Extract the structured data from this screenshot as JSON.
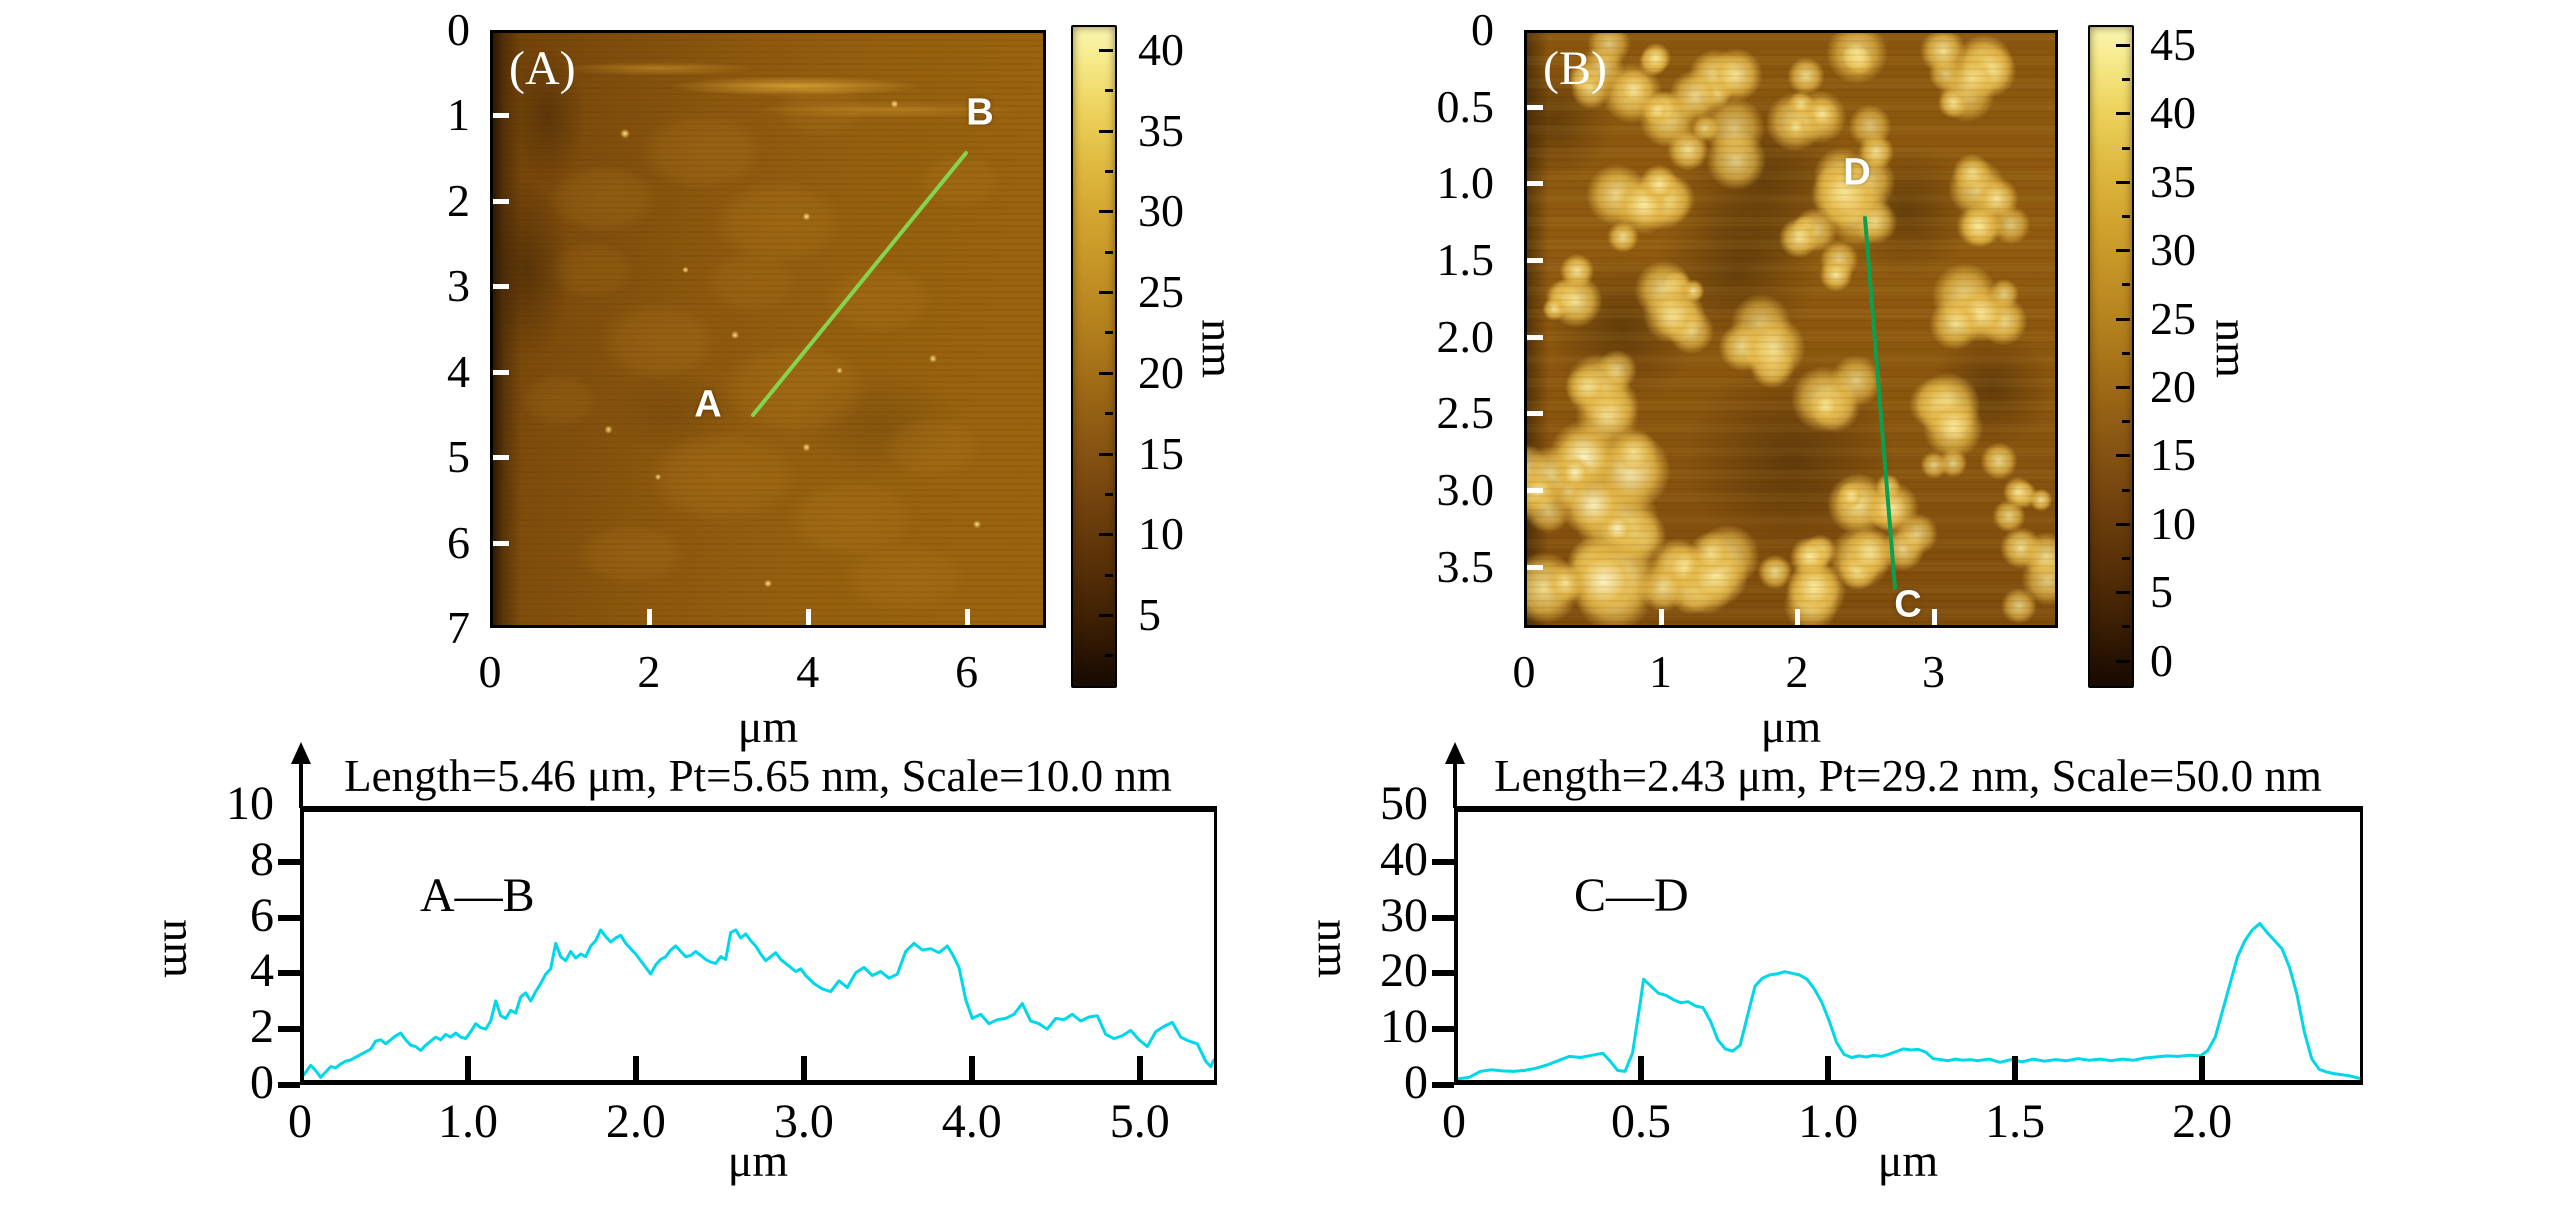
{
  "figure": {
    "background": "#ffffff"
  },
  "colors": {
    "profile_curve": "#00d7e8",
    "panel_a_line": "#85d44f",
    "panel_b_line": "#0ba050",
    "afm_tick": "#ffffff",
    "text": "#000000"
  },
  "panel_a": {
    "label": "(A)",
    "axis_unit": "μm",
    "x_tick_labels": [
      "0",
      "2",
      "4",
      "6"
    ],
    "x_tick_values": [
      0,
      2,
      4,
      6
    ],
    "y_tick_labels": [
      "0",
      "1",
      "2",
      "3",
      "4",
      "5",
      "6",
      "7"
    ],
    "y_tick_values": [
      0,
      1,
      2,
      3,
      4,
      5,
      6,
      7
    ],
    "x_range_um": [
      0,
      7
    ],
    "y_range_um": [
      0,
      7
    ],
    "profile_line": {
      "start_label": "A",
      "end_label": "B",
      "color": "#85d44f"
    },
    "colorbar": {
      "unit": "nm",
      "tick_labels": [
        "40",
        "35",
        "30",
        "25",
        "20",
        "15",
        "10",
        "5"
      ],
      "tick_values": [
        40,
        35,
        30,
        25,
        20,
        15,
        10,
        5
      ]
    }
  },
  "panel_b": {
    "label": "(B)",
    "axis_unit": "μm",
    "x_tick_labels": [
      "0",
      "1",
      "2",
      "3"
    ],
    "x_tick_values": [
      0,
      1,
      2,
      3
    ],
    "y_tick_labels": [
      "0",
      "0.5",
      "1.0",
      "1.5",
      "2.0",
      "2.5",
      "3.0",
      "3.5"
    ],
    "y_tick_values": [
      0,
      0.5,
      1.0,
      1.5,
      2.0,
      2.5,
      3.0,
      3.5
    ],
    "x_range_um": [
      0,
      3.9
    ],
    "y_range_um": [
      0,
      3.9
    ],
    "profile_line": {
      "start_label": "C",
      "end_label": "D",
      "color": "#0ba050"
    },
    "colorbar": {
      "unit": "nm",
      "tick_labels": [
        "45",
        "40",
        "35",
        "30",
        "25",
        "20",
        "15",
        "10",
        "5",
        "0"
      ],
      "tick_values": [
        45,
        40,
        35,
        30,
        25,
        20,
        15,
        10,
        5,
        0
      ]
    }
  },
  "chart_data": [
    {
      "type": "line",
      "title": "Length=5.46 μm, Pt=5.65 nm, Scale=10.0 nm",
      "annotation": "A—B",
      "xlabel": "μm",
      "ylabel": "nm",
      "xlim": [
        0,
        5.46
      ],
      "ylim": [
        0,
        10
      ],
      "x_tick_labels": [
        "0",
        "1.0",
        "2.0",
        "3.0",
        "4.0",
        "5.0"
      ],
      "x_tick_values": [
        0,
        1,
        2,
        3,
        4,
        5
      ],
      "y_tick_labels": [
        "0",
        "2",
        "4",
        "6",
        "8",
        "10"
      ],
      "y_tick_values": [
        0,
        2,
        4,
        6,
        8,
        10
      ],
      "line_color": "#00d7e8",
      "points": [
        [
          0,
          0.2
        ],
        [
          0.04,
          0.55
        ],
        [
          0.07,
          0.35
        ],
        [
          0.1,
          0.1
        ],
        [
          0.13,
          0.3
        ],
        [
          0.16,
          0.5
        ],
        [
          0.19,
          0.45
        ],
        [
          0.22,
          0.6
        ],
        [
          0.25,
          0.7
        ],
        [
          0.28,
          0.75
        ],
        [
          0.31,
          0.85
        ],
        [
          0.34,
          0.95
        ],
        [
          0.37,
          1.05
        ],
        [
          0.4,
          1.15
        ],
        [
          0.43,
          1.45
        ],
        [
          0.46,
          1.5
        ],
        [
          0.49,
          1.35
        ],
        [
          0.52,
          1.5
        ],
        [
          0.55,
          1.65
        ],
        [
          0.58,
          1.75
        ],
        [
          0.61,
          1.5
        ],
        [
          0.64,
          1.3
        ],
        [
          0.67,
          1.25
        ],
        [
          0.7,
          1.1
        ],
        [
          0.73,
          1.3
        ],
        [
          0.76,
          1.45
        ],
        [
          0.79,
          1.6
        ],
        [
          0.82,
          1.5
        ],
        [
          0.85,
          1.7
        ],
        [
          0.88,
          1.6
        ],
        [
          0.91,
          1.75
        ],
        [
          0.94,
          1.6
        ],
        [
          0.97,
          1.55
        ],
        [
          1,
          1.8
        ],
        [
          1.03,
          2.1
        ],
        [
          1.06,
          1.95
        ],
        [
          1.09,
          1.9
        ],
        [
          1.12,
          2.2
        ],
        [
          1.15,
          2.95
        ],
        [
          1.18,
          2.4
        ],
        [
          1.21,
          2.3
        ],
        [
          1.24,
          2.6
        ],
        [
          1.27,
          2.5
        ],
        [
          1.3,
          3.1
        ],
        [
          1.33,
          3.25
        ],
        [
          1.36,
          2.95
        ],
        [
          1.39,
          3.3
        ],
        [
          1.42,
          3.6
        ],
        [
          1.45,
          3.95
        ],
        [
          1.48,
          4.15
        ],
        [
          1.51,
          5.1
        ],
        [
          1.54,
          4.6
        ],
        [
          1.57,
          4.45
        ],
        [
          1.6,
          4.8
        ],
        [
          1.63,
          4.55
        ],
        [
          1.66,
          4.7
        ],
        [
          1.69,
          4.6
        ],
        [
          1.72,
          5
        ],
        [
          1.75,
          5.2
        ],
        [
          1.78,
          5.6
        ],
        [
          1.81,
          5.35
        ],
        [
          1.84,
          5.15
        ],
        [
          1.87,
          5.3
        ],
        [
          1.9,
          5.4
        ],
        [
          1.93,
          5.1
        ],
        [
          1.96,
          4.9
        ],
        [
          1.99,
          4.7
        ],
        [
          2.02,
          4.45
        ],
        [
          2.05,
          4.2
        ],
        [
          2.08,
          3.95
        ],
        [
          2.11,
          4.3
        ],
        [
          2.14,
          4.5
        ],
        [
          2.17,
          4.6
        ],
        [
          2.2,
          4.85
        ],
        [
          2.23,
          5
        ],
        [
          2.26,
          4.8
        ],
        [
          2.29,
          4.6
        ],
        [
          2.32,
          4.65
        ],
        [
          2.35,
          4.8
        ],
        [
          2.38,
          4.65
        ],
        [
          2.41,
          4.5
        ],
        [
          2.44,
          4.4
        ],
        [
          2.47,
          4.35
        ],
        [
          2.5,
          4.6
        ],
        [
          2.53,
          4.5
        ],
        [
          2.56,
          5.5
        ],
        [
          2.59,
          5.6
        ],
        [
          2.62,
          5.3
        ],
        [
          2.65,
          5.45
        ],
        [
          2.68,
          5.2
        ],
        [
          2.71,
          5
        ],
        [
          2.74,
          4.7
        ],
        [
          2.77,
          4.45
        ],
        [
          2.8,
          4.6
        ],
        [
          2.83,
          4.75
        ],
        [
          2.86,
          4.5
        ],
        [
          2.89,
          4.35
        ],
        [
          2.92,
          4.2
        ],
        [
          2.95,
          4.05
        ],
        [
          2.98,
          4.15
        ],
        [
          3.01,
          3.9
        ],
        [
          3.06,
          3.6
        ],
        [
          3.11,
          3.4
        ],
        [
          3.16,
          3.3
        ],
        [
          3.21,
          3.7
        ],
        [
          3.26,
          3.45
        ],
        [
          3.31,
          4
        ],
        [
          3.36,
          4.2
        ],
        [
          3.41,
          3.9
        ],
        [
          3.46,
          4.05
        ],
        [
          3.51,
          3.8
        ],
        [
          3.56,
          3.95
        ],
        [
          3.61,
          4.8
        ],
        [
          3.66,
          5.1
        ],
        [
          3.71,
          4.85
        ],
        [
          3.76,
          4.9
        ],
        [
          3.81,
          4.75
        ],
        [
          3.86,
          5
        ],
        [
          3.89,
          4.7
        ],
        [
          3.93,
          4.2
        ],
        [
          3.97,
          3
        ],
        [
          4.01,
          2.3
        ],
        [
          4.06,
          2.45
        ],
        [
          4.11,
          2.1
        ],
        [
          4.16,
          2.25
        ],
        [
          4.21,
          2.3
        ],
        [
          4.26,
          2.45
        ],
        [
          4.31,
          2.85
        ],
        [
          4.36,
          2.2
        ],
        [
          4.41,
          2.1
        ],
        [
          4.46,
          1.9
        ],
        [
          4.51,
          2.3
        ],
        [
          4.56,
          2.25
        ],
        [
          4.61,
          2.45
        ],
        [
          4.66,
          2.2
        ],
        [
          4.71,
          2.35
        ],
        [
          4.76,
          2.4
        ],
        [
          4.81,
          1.7
        ],
        [
          4.86,
          1.55
        ],
        [
          4.91,
          1.65
        ],
        [
          4.96,
          1.85
        ],
        [
          5.01,
          1.5
        ],
        [
          5.06,
          1.25
        ],
        [
          5.11,
          1.8
        ],
        [
          5.16,
          2
        ],
        [
          5.21,
          2.15
        ],
        [
          5.26,
          1.6
        ],
        [
          5.31,
          1.45
        ],
        [
          5.36,
          1.35
        ],
        [
          5.41,
          0.7
        ],
        [
          5.44,
          0.5
        ],
        [
          5.46,
          0.75
        ]
      ]
    },
    {
      "type": "line",
      "title": "Length=2.43 μm, Pt=29.2 nm, Scale=50.0 nm",
      "annotation": "C—D",
      "xlabel": "μm",
      "ylabel": "nm",
      "xlim": [
        0,
        2.43
      ],
      "ylim": [
        0,
        50
      ],
      "x_tick_labels": [
        "0",
        "0.5",
        "1.0",
        "1.5",
        "2.0"
      ],
      "x_tick_values": [
        0,
        0.5,
        1.0,
        1.5,
        2.0
      ],
      "y_tick_labels": [
        "0",
        "10",
        "20",
        "30",
        "40",
        "50"
      ],
      "y_tick_values": [
        0,
        10,
        20,
        30,
        40,
        50
      ],
      "line_color": "#00d7e8",
      "points": [
        [
          0,
          0.2
        ],
        [
          0.03,
          0.5
        ],
        [
          0.06,
          1.6
        ],
        [
          0.09,
          1.9
        ],
        [
          0.12,
          1.7
        ],
        [
          0.15,
          1.6
        ],
        [
          0.18,
          1.8
        ],
        [
          0.21,
          2.2
        ],
        [
          0.24,
          2.8
        ],
        [
          0.27,
          3.6
        ],
        [
          0.3,
          4.4
        ],
        [
          0.33,
          4.2
        ],
        [
          0.36,
          4.6
        ],
        [
          0.39,
          5
        ],
        [
          0.41,
          3.5
        ],
        [
          0.43,
          1.8
        ],
        [
          0.45,
          1.6
        ],
        [
          0.47,
          5
        ],
        [
          0.49,
          14
        ],
        [
          0.5,
          18.8
        ],
        [
          0.52,
          17.5
        ],
        [
          0.54,
          16.2
        ],
        [
          0.56,
          15.8
        ],
        [
          0.58,
          15
        ],
        [
          0.6,
          14.4
        ],
        [
          0.62,
          14.6
        ],
        [
          0.64,
          13.8
        ],
        [
          0.66,
          13.5
        ],
        [
          0.68,
          11
        ],
        [
          0.7,
          7.5
        ],
        [
          0.72,
          5.8
        ],
        [
          0.74,
          5.4
        ],
        [
          0.76,
          6.5
        ],
        [
          0.78,
          12
        ],
        [
          0.8,
          17.5
        ],
        [
          0.82,
          19
        ],
        [
          0.84,
          19.6
        ],
        [
          0.86,
          19.8
        ],
        [
          0.88,
          20.2
        ],
        [
          0.9,
          19.9
        ],
        [
          0.92,
          19.6
        ],
        [
          0.94,
          18.8
        ],
        [
          0.96,
          17
        ],
        [
          0.98,
          14.5
        ],
        [
          1,
          11
        ],
        [
          1.02,
          7
        ],
        [
          1.04,
          4.8
        ],
        [
          1.06,
          4.2
        ],
        [
          1.08,
          4.5
        ],
        [
          1.1,
          4.3
        ],
        [
          1.12,
          4.6
        ],
        [
          1.14,
          4.4
        ],
        [
          1.16,
          4.8
        ],
        [
          1.18,
          5.3
        ],
        [
          1.2,
          5.8
        ],
        [
          1.22,
          5.6
        ],
        [
          1.24,
          5.7
        ],
        [
          1.26,
          5.2
        ],
        [
          1.28,
          4
        ],
        [
          1.3,
          3.8
        ],
        [
          1.32,
          3.6
        ],
        [
          1.34,
          3.9
        ],
        [
          1.36,
          3.7
        ],
        [
          1.38,
          3.8
        ],
        [
          1.4,
          3.6
        ],
        [
          1.43,
          3.9
        ],
        [
          1.46,
          3.3
        ],
        [
          1.49,
          3.8
        ],
        [
          1.52,
          3.4
        ],
        [
          1.55,
          3.9
        ],
        [
          1.58,
          3.5
        ],
        [
          1.61,
          3.8
        ],
        [
          1.64,
          3.6
        ],
        [
          1.67,
          4
        ],
        [
          1.7,
          3.7
        ],
        [
          1.73,
          3.9
        ],
        [
          1.76,
          3.6
        ],
        [
          1.79,
          3.9
        ],
        [
          1.82,
          3.7
        ],
        [
          1.85,
          4.1
        ],
        [
          1.88,
          4.3
        ],
        [
          1.91,
          4.5
        ],
        [
          1.94,
          4.4
        ],
        [
          1.97,
          4.6
        ],
        [
          2,
          4.5
        ],
        [
          2.02,
          5.5
        ],
        [
          2.04,
          8
        ],
        [
          2.06,
          13
        ],
        [
          2.08,
          18
        ],
        [
          2.1,
          23
        ],
        [
          2.12,
          26
        ],
        [
          2.14,
          28
        ],
        [
          2.16,
          29.2
        ],
        [
          2.18,
          27.5
        ],
        [
          2.2,
          26
        ],
        [
          2.22,
          24.5
        ],
        [
          2.24,
          21
        ],
        [
          2.26,
          16
        ],
        [
          2.28,
          9
        ],
        [
          2.3,
          4
        ],
        [
          2.32,
          2
        ],
        [
          2.34,
          1.5
        ],
        [
          2.36,
          1.2
        ],
        [
          2.38,
          1
        ],
        [
          2.4,
          0.8
        ],
        [
          2.43,
          0.3
        ]
      ]
    }
  ]
}
